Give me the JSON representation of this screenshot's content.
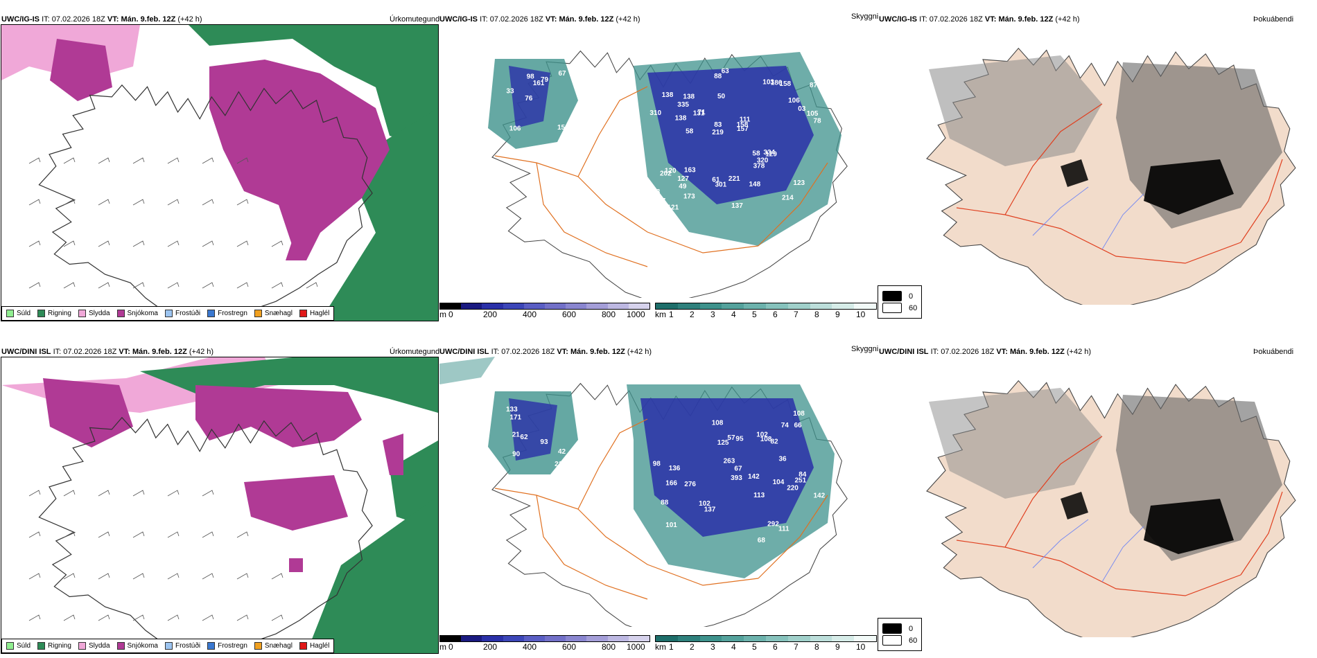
{
  "rows": [
    {
      "model": "UWC/IG-IS",
      "it_label": "IT:",
      "it_value": "07.02.2026 18Z",
      "vt_label": "VT:",
      "vt_value": "Mán. 9.feb. 12Z",
      "lead": "(+42 h)",
      "cloud_labels": [
        "156",
        "33",
        "67",
        "76",
        "79",
        "106",
        "98",
        "161",
        "120",
        "71",
        "88",
        "49",
        "50",
        "111",
        "129",
        "138",
        "88",
        "78",
        "58",
        "03",
        "219",
        "61",
        "83",
        "138",
        "103",
        "163",
        "214",
        "123",
        "334",
        "137",
        "131",
        "138",
        "378",
        "173",
        "105",
        "158",
        "237",
        "301",
        "157",
        "202",
        "106",
        "87",
        "320",
        "148",
        "127",
        "121",
        "334",
        "221",
        "158",
        "63",
        "58",
        "310",
        "335",
        "186"
      ]
    },
    {
      "model": "UWC/DINI ISL",
      "it_label": "IT:",
      "it_value": "07.02.2026 18Z",
      "vt_label": "VT:",
      "vt_value": "Mán. 9.feb. 12Z",
      "lead": "(+42 h)",
      "cloud_labels": [
        "216",
        "21",
        "93",
        "133",
        "42",
        "171",
        "90",
        "62",
        "82",
        "57",
        "108",
        "111",
        "137",
        "108",
        "142",
        "88",
        "104",
        "67",
        "98",
        "101",
        "108",
        "95",
        "36",
        "142",
        "84",
        "136",
        "276",
        "393",
        "263",
        "66",
        "113",
        "166",
        "102",
        "102",
        "125",
        "220",
        "251",
        "292",
        "74",
        "68"
      ]
    }
  ],
  "panels": {
    "precip_title": "Úrkomutegund",
    "cloud_title": "Skyggni",
    "fog_title": "Þokuábendi"
  },
  "precip_legend": [
    {
      "label": "Súld",
      "color": "#90ee90"
    },
    {
      "label": "Rigning",
      "color": "#2e8b57"
    },
    {
      "label": "Slydda",
      "color": "#f0a8d8"
    },
    {
      "label": "Snjókoma",
      "color": "#b03a95"
    },
    {
      "label": "Frostúði",
      "color": "#9cc4f0"
    },
    {
      "label": "Frostregn",
      "color": "#3a78d0"
    },
    {
      "label": "Snæhagl",
      "color": "#f0a020"
    },
    {
      "label": "Haglél",
      "color": "#e01818"
    }
  ],
  "cloud_base_bar": {
    "unit": "m",
    "ticks": [
      "0",
      "200",
      "400",
      "600",
      "800",
      "1000"
    ],
    "colors": [
      "#000000",
      "#1a1a80",
      "#2a30a8",
      "#3c46b8",
      "#5a5ec4",
      "#7270c8",
      "#8a86d0",
      "#a49ed8",
      "#bdb8e2",
      "#d6d2ec"
    ]
  },
  "visibility_bar": {
    "unit": "km",
    "ticks": [
      "1",
      "2",
      "3",
      "4",
      "5",
      "6",
      "7",
      "8",
      "9",
      "10"
    ],
    "colors": [
      "#1e6e6a",
      "#2e807c",
      "#3e928c",
      "#54a29c",
      "#6cb2ac",
      "#86c2bc",
      "#a0d0ca",
      "#bcdeda",
      "#d6ece8",
      "#f2faf8"
    ]
  },
  "fog_legend": [
    {
      "label": "0",
      "color": "#000000"
    },
    {
      "label": "60",
      "color": "#ffffff"
    }
  ]
}
